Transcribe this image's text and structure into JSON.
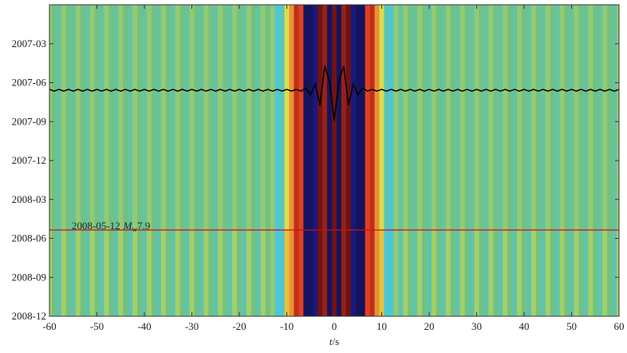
{
  "chart_data": {
    "type": "heatmap",
    "xlabel": {
      "var": "t",
      "unit": "/s"
    },
    "xlim": [
      -60,
      60
    ],
    "xticks": [
      -60,
      -50,
      -40,
      -30,
      -20,
      -10,
      0,
      10,
      20,
      30,
      40,
      50,
      60
    ],
    "ylim": [
      "2006-12",
      "2008-12"
    ],
    "yticks": [
      "2007-03",
      "2007-06",
      "2007-09",
      "2007-12",
      "2008-03",
      "2008-06",
      "2008-09",
      "2008-12"
    ],
    "x": [
      -60,
      -59,
      -58,
      -57,
      -56,
      -55,
      -54,
      -53,
      -52,
      -51,
      -50,
      -49,
      -48,
      -47,
      -46,
      -45,
      -44,
      -43,
      -42,
      -41,
      -40,
      -39,
      -38,
      -37,
      -36,
      -35,
      -34,
      -33,
      -32,
      -31,
      -30,
      -29,
      -28,
      -27,
      -26,
      -25,
      -24,
      -23,
      -22,
      -21,
      -20,
      -19,
      -18,
      -17,
      -16,
      -15,
      -14,
      -13,
      -12,
      -11,
      -10,
      -9,
      -8,
      -7,
      -6,
      -5,
      -4,
      -3,
      -2,
      -1,
      0,
      1,
      2,
      3,
      4,
      5,
      6,
      7,
      8,
      9,
      10,
      11,
      12,
      13,
      14,
      15,
      16,
      17,
      18,
      19,
      20,
      21,
      22,
      23,
      24,
      25,
      26,
      27,
      28,
      29,
      30,
      31,
      32,
      33,
      34,
      35,
      36,
      37,
      38,
      39,
      40,
      41,
      42,
      43,
      44,
      45,
      46,
      47,
      48,
      49,
      50,
      51,
      52,
      53,
      54,
      55,
      56,
      57,
      58,
      59,
      60
    ],
    "row_edges": [
      "2006-12",
      "2008-05-12",
      "2008-12"
    ],
    "z": [
      [
        0.1,
        0,
        -0.1,
        0.1,
        0,
        -0.1,
        0.1,
        0,
        -0.1,
        0.1,
        0,
        -0.1,
        0.1,
        0,
        -0.1,
        0.1,
        0,
        -0.1,
        0.1,
        0,
        -0.1,
        0.1,
        0,
        -0.1,
        0.1,
        0,
        -0.1,
        0.1,
        0,
        -0.1,
        0.1,
        0,
        -0.1,
        0.1,
        0,
        -0.1,
        0.1,
        0,
        -0.1,
        0.1,
        0,
        -0.1,
        0.1,
        0,
        -0.1,
        0.1,
        0,
        0.1,
        -0.3,
        -0.2,
        0.3,
        0.5,
        0.8,
        0.7,
        -1,
        -1,
        -0.9,
        1,
        0.9,
        -1,
        1,
        -1,
        0.9,
        1,
        -0.9,
        -1,
        -1,
        0.7,
        0.8,
        0.5,
        0.3,
        -0.2,
        -0.3,
        0.1,
        -0.1,
        0.1,
        0,
        -0.1,
        0.1,
        0,
        -0.1,
        0.1,
        0,
        -0.1,
        0.1,
        0,
        -0.1,
        0.1,
        0,
        -0.1,
        0.1,
        0,
        -0.1,
        0.1,
        0,
        -0.1,
        0.1,
        0,
        -0.1,
        0.1,
        0,
        -0.1,
        0.1,
        0,
        -0.1,
        0.1,
        0,
        -0.1,
        0.1,
        0,
        -0.1,
        0.1,
        0,
        -0.1,
        0.1,
        0,
        -0.1,
        0.1,
        0,
        -0.1,
        0.1
      ],
      [
        0.15,
        0,
        -0.15,
        0.15,
        0,
        -0.15,
        0.15,
        0,
        -0.15,
        0.15,
        0,
        -0.15,
        0.15,
        0,
        -0.15,
        0.15,
        0,
        -0.15,
        0.15,
        0,
        -0.15,
        0.15,
        0,
        -0.15,
        0.15,
        0,
        -0.15,
        0.15,
        0,
        -0.15,
        0.15,
        0,
        -0.15,
        0.15,
        0,
        -0.15,
        0.15,
        0,
        -0.15,
        0.15,
        0,
        -0.15,
        0.15,
        0,
        -0.15,
        0.15,
        0,
        0.1,
        -0.3,
        -0.3,
        0.4,
        0.5,
        0.8,
        0.7,
        -1,
        -1,
        -0.9,
        1,
        0.9,
        -1,
        1,
        -1,
        0.9,
        1,
        -0.9,
        -1,
        -1,
        0.7,
        0.8,
        0.5,
        0.4,
        -0.3,
        -0.3,
        0.1,
        -0.15,
        0.15,
        0,
        -0.15,
        0.15,
        0,
        -0.15,
        0.15,
        0,
        -0.15,
        0.15,
        0,
        -0.15,
        0.15,
        0,
        -0.15,
        0.15,
        0,
        -0.15,
        0.15,
        0,
        -0.15,
        0.15,
        0,
        -0.15,
        0.15,
        0,
        -0.15,
        0.15,
        0,
        -0.15,
        0.15,
        0,
        -0.15,
        0.15,
        0,
        -0.15,
        0.15,
        0,
        -0.15,
        0.15,
        0,
        -0.15,
        0.15,
        0,
        -0.15,
        0.15
      ]
    ],
    "zlim": [
      -1,
      1
    ],
    "colormap": [
      "#14145e",
      "#2424c4",
      "#48c8e0",
      "#72c184",
      "#e4e044",
      "#f04422",
      "#701212"
    ],
    "waveform": {
      "color": "#000000",
      "values": [
        0.03,
        -0.03,
        0.03,
        -0.03,
        0.03,
        -0.03,
        0.03,
        -0.03,
        0.03,
        -0.03,
        0.03,
        -0.03,
        0.03,
        -0.03,
        0.03,
        -0.03,
        0.03,
        -0.03,
        0.03,
        -0.03,
        0.03,
        -0.03,
        0.03,
        -0.03,
        0.03,
        -0.03,
        0.03,
        -0.03,
        0.03,
        -0.03,
        0.03,
        -0.03,
        0.03,
        -0.03,
        0.03,
        -0.03,
        0.03,
        -0.03,
        0.03,
        -0.03,
        0.03,
        -0.03,
        0.03,
        -0.03,
        0.03,
        -0.03,
        0.03,
        -0.03,
        0.03,
        -0.03,
        0.03,
        -0.03,
        0.03,
        -0.03,
        0.08,
        -0.15,
        0.2,
        -0.5,
        0.8,
        0.3,
        -1,
        0.3,
        0.8,
        -0.5,
        0.2,
        -0.15,
        0.08,
        -0.03,
        0.03,
        -0.03,
        0.03,
        -0.03,
        0.03,
        -0.03,
        0.03,
        -0.03,
        0.03,
        -0.03,
        0.03,
        -0.03,
        0.03,
        -0.03,
        0.03,
        -0.03,
        0.03,
        -0.03,
        0.03,
        -0.03,
        0.03,
        -0.03,
        0.03,
        -0.03,
        0.03,
        -0.03,
        0.03,
        -0.03,
        0.03,
        -0.03,
        0.03,
        -0.03,
        0.03,
        -0.03,
        0.03,
        -0.03,
        0.03,
        -0.03,
        0.03,
        -0.03,
        0.03,
        -0.03,
        0.03,
        -0.03,
        0.03,
        -0.03,
        0.03,
        -0.03,
        0.03,
        -0.03,
        0.03,
        -0.03,
        0.03
      ]
    },
    "event": {
      "date": "2008-05-12",
      "color": "#d01010",
      "symbol": "M",
      "subscript": "w",
      "magnitude": "7.9"
    }
  }
}
